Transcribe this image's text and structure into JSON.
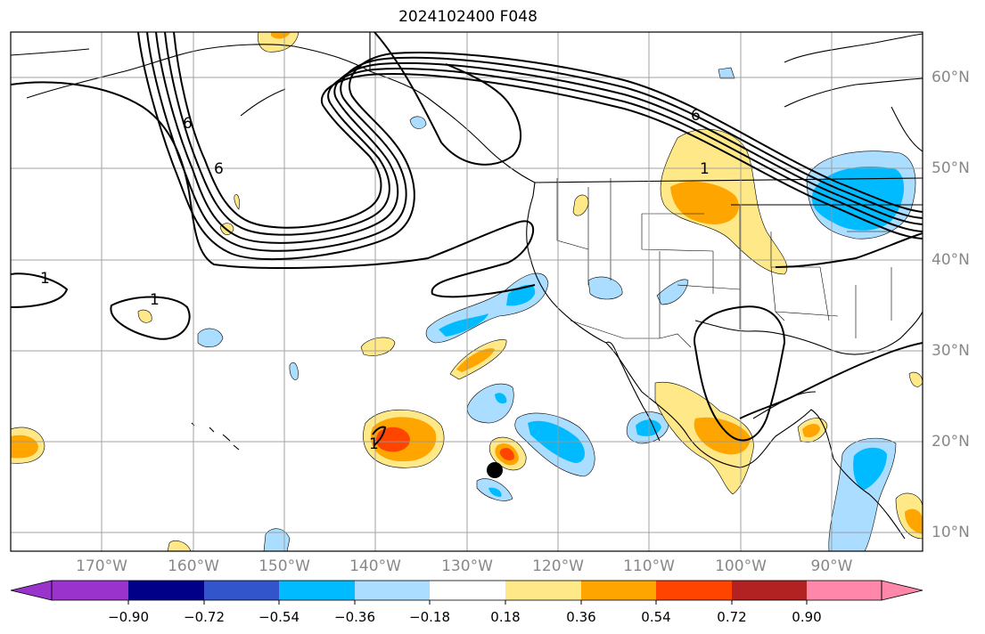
{
  "title": "2024102400 F048",
  "map": {
    "projection": "PlateCarree",
    "lon_range": [
      -180,
      -80
    ],
    "lat_range": [
      8,
      65
    ],
    "gridlines": true,
    "lon_ticks": [
      "170°W",
      "160°W",
      "150°W",
      "140°W",
      "130°W",
      "120°W",
      "110°W",
      "100°W",
      "90°W"
    ],
    "lat_ticks": [
      "60°N",
      "50°N",
      "40°N",
      "30°N",
      "20°N",
      "10°N"
    ],
    "contour_labels": [
      "6",
      "6",
      "1",
      "6",
      "1",
      "1",
      "1"
    ],
    "storm_marker": {
      "lon": -127.5,
      "lat": 16.7
    }
  },
  "colorbar": {
    "ticks": [
      "−0.90",
      "−0.72",
      "−0.54",
      "−0.36",
      "−0.18",
      "0.18",
      "0.36",
      "0.54",
      "0.72",
      "0.90"
    ],
    "colors": [
      "#9933cc",
      "#000088",
      "#3355cc",
      "#00bbff",
      "#aaddff",
      "#ffffff",
      "#ffe888",
      "#ffa500",
      "#ff4400",
      "#b22222",
      "#ff88aa"
    ]
  }
}
